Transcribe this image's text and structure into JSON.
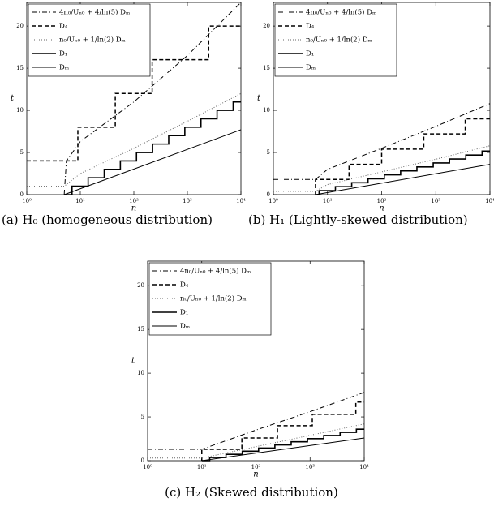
{
  "chart_data": [
    {
      "type": "line",
      "xlabel": "n",
      "ylabel": "t",
      "log_x": true,
      "legend": "upper left",
      "caption": "(a) H₀ (homogeneous distribution)",
      "xlim": [
        1,
        10000
      ],
      "ylim": [
        0,
        22.8
      ],
      "xticks": [
        {
          "value": 1,
          "label": "10⁰"
        },
        {
          "value": 10,
          "label": "10¹"
        },
        {
          "value": 100,
          "label": "10²"
        },
        {
          "value": 1000,
          "label": "10³"
        },
        {
          "value": 10000,
          "label": "10⁴"
        }
      ],
      "yticks": [
        0,
        5,
        10,
        15,
        20
      ],
      "series": [
        {
          "name": "4n₀/Uₙ₀ + 4/ln(5) Dₘ",
          "color": "#000000",
          "dash": "dashdot",
          "width": 1,
          "x": [
            5,
            5.5,
            10,
            100,
            1000,
            10000
          ],
          "values": [
            0,
            4,
            6.3,
            11,
            16.5,
            22.8
          ]
        },
        {
          "name": "D₄",
          "color": "#000000",
          "dash": "dashed",
          "width": 1.5,
          "x": [
            1,
            9,
            9,
            45,
            45,
            220,
            220,
            2500,
            2500,
            10000
          ],
          "values": [
            4,
            4,
            8,
            8,
            12,
            12,
            16,
            16,
            20,
            20
          ]
        },
        {
          "name": "n₀/Uₙ₀ + 1/ln(2) Dₘ",
          "color": "#666666",
          "dash": "dotted",
          "width": 1,
          "x": [
            1,
            5,
            10,
            100,
            1000,
            10000
          ],
          "values": [
            1,
            1,
            2.5,
            5.5,
            8.7,
            12
          ]
        },
        {
          "name": "D₁",
          "color": "#000000",
          "dash": "solid",
          "width": 1.6,
          "x": [
            5,
            7,
            7,
            14,
            14,
            28,
            28,
            56,
            56,
            112,
            112,
            224,
            224,
            448,
            448,
            896,
            896,
            1792,
            1792,
            3584,
            3584,
            7168,
            7168,
            10000
          ],
          "values": [
            0,
            0,
            1,
            1,
            2,
            2,
            3,
            3,
            4,
            4,
            5,
            5,
            6,
            6,
            7,
            7,
            8,
            8,
            9,
            9,
            10,
            10,
            11,
            11
          ]
        },
        {
          "name": "Dₘ",
          "color": "#000000",
          "dash": "solid",
          "width": 1,
          "x": [
            5,
            10000
          ],
          "values": [
            0,
            7.7
          ]
        }
      ]
    },
    {
      "type": "line",
      "xlabel": "n",
      "ylabel": "t",
      "log_x": true,
      "legend": "upper left",
      "caption": "(b) H₁ (Lightly-skewed distribution)",
      "xlim": [
        1,
        10000
      ],
      "ylim": [
        0,
        22.8
      ],
      "xticks": [
        {
          "value": 1,
          "label": "10⁰"
        },
        {
          "value": 10,
          "label": "10¹"
        },
        {
          "value": 100,
          "label": "10²"
        },
        {
          "value": 1000,
          "label": "10³"
        },
        {
          "value": 10000,
          "label": "10⁴"
        }
      ],
      "yticks": [
        0,
        5,
        10,
        15,
        20
      ],
      "series": [
        {
          "name": "4n₀/Uₙ₀ + 4/ln(5) Dₘ",
          "color": "#000000",
          "dash": "dashdot",
          "width": 1,
          "x": [
            1,
            6,
            10,
            100,
            1000,
            10000
          ],
          "values": [
            1.8,
            1.8,
            3,
            5.5,
            8.1,
            10.8
          ]
        },
        {
          "name": "D₄",
          "color": "#000000",
          "dash": "dashed",
          "width": 1.5,
          "x": [
            6,
            6,
            25,
            25,
            100,
            100,
            600,
            600,
            3500,
            3500,
            10000
          ],
          "values": [
            0,
            1.8,
            1.8,
            3.6,
            3.6,
            5.4,
            5.4,
            7.2,
            7.2,
            9,
            9
          ]
        },
        {
          "name": "n₀/Uₙ₀ + 1/ln(2) Dₘ",
          "color": "#666666",
          "dash": "dotted",
          "width": 1,
          "x": [
            1,
            6,
            10,
            100,
            1000,
            10000
          ],
          "values": [
            0.4,
            0.4,
            1.2,
            2.7,
            4.2,
            5.8
          ]
        },
        {
          "name": "D₁",
          "color": "#000000",
          "dash": "solid",
          "width": 1.6,
          "x": [
            6,
            7,
            7,
            14,
            14,
            28,
            28,
            56,
            56,
            112,
            112,
            224,
            224,
            448,
            448,
            896,
            896,
            1792,
            1792,
            3584,
            3584,
            7168,
            7168,
            10000
          ],
          "values": [
            0,
            0,
            0.47,
            0.47,
            0.94,
            0.94,
            1.41,
            1.41,
            1.88,
            1.88,
            2.35,
            2.35,
            2.82,
            2.82,
            3.29,
            3.29,
            3.76,
            3.76,
            4.23,
            4.23,
            4.7,
            4.7,
            5.17,
            5.17
          ]
        },
        {
          "name": "Dₘ",
          "color": "#000000",
          "dash": "solid",
          "width": 1,
          "x": [
            6,
            10000
          ],
          "values": [
            0,
            3.6
          ]
        }
      ]
    },
    {
      "type": "line",
      "xlabel": "n",
      "ylabel": "t",
      "log_x": true,
      "legend": "upper left",
      "caption": "(c) H₂ (Skewed distribution)",
      "xlim": [
        1,
        10000
      ],
      "ylim": [
        0,
        22.8
      ],
      "xticks": [
        {
          "value": 1,
          "label": "10⁰"
        },
        {
          "value": 10,
          "label": "10¹"
        },
        {
          "value": 100,
          "label": "10²"
        },
        {
          "value": 1000,
          "label": "10³"
        },
        {
          "value": 10000,
          "label": "10⁴"
        }
      ],
      "yticks": [
        0,
        5,
        10,
        15,
        20
      ],
      "series": [
        {
          "name": "4n₀/Uₙ₀ + 4/ln(5) Dₘ",
          "color": "#000000",
          "dash": "dashdot",
          "width": 1,
          "x": [
            1,
            10,
            100,
            1000,
            10000
          ],
          "values": [
            1.3,
            1.3,
            3.5,
            5.6,
            7.8
          ]
        },
        {
          "name": "D₄",
          "color": "#000000",
          "dash": "dashed",
          "width": 1.5,
          "x": [
            10,
            10,
            55,
            55,
            250,
            250,
            1100,
            1100,
            7000,
            7000,
            10000
          ],
          "values": [
            0,
            1.3,
            1.3,
            2.6,
            2.6,
            4,
            4,
            5.3,
            5.3,
            6.7,
            6.7
          ]
        },
        {
          "name": "n₀/Uₙ₀ + 1/ln(2) Dₘ",
          "color": "#666666",
          "dash": "dotted",
          "width": 1,
          "x": [
            1,
            10,
            100,
            1000,
            10000
          ],
          "values": [
            0.3,
            0.3,
            1.6,
            2.9,
            4.2
          ]
        },
        {
          "name": "D₁",
          "color": "#000000",
          "dash": "solid",
          "width": 1.6,
          "x": [
            10,
            14,
            14,
            28,
            28,
            56,
            56,
            112,
            112,
            224,
            224,
            448,
            448,
            896,
            896,
            1792,
            1792,
            3584,
            3584,
            7168,
            7168,
            10000
          ],
          "values": [
            0,
            0,
            0.36,
            0.36,
            0.72,
            0.72,
            1.08,
            1.08,
            1.44,
            1.44,
            1.8,
            1.8,
            2.16,
            2.16,
            2.52,
            2.52,
            2.88,
            2.88,
            3.24,
            3.24,
            3.6,
            3.6
          ]
        },
        {
          "name": "Dₘ",
          "color": "#000000",
          "dash": "solid",
          "width": 1,
          "x": [
            10,
            10000
          ],
          "values": [
            0,
            2.6
          ]
        }
      ]
    }
  ]
}
